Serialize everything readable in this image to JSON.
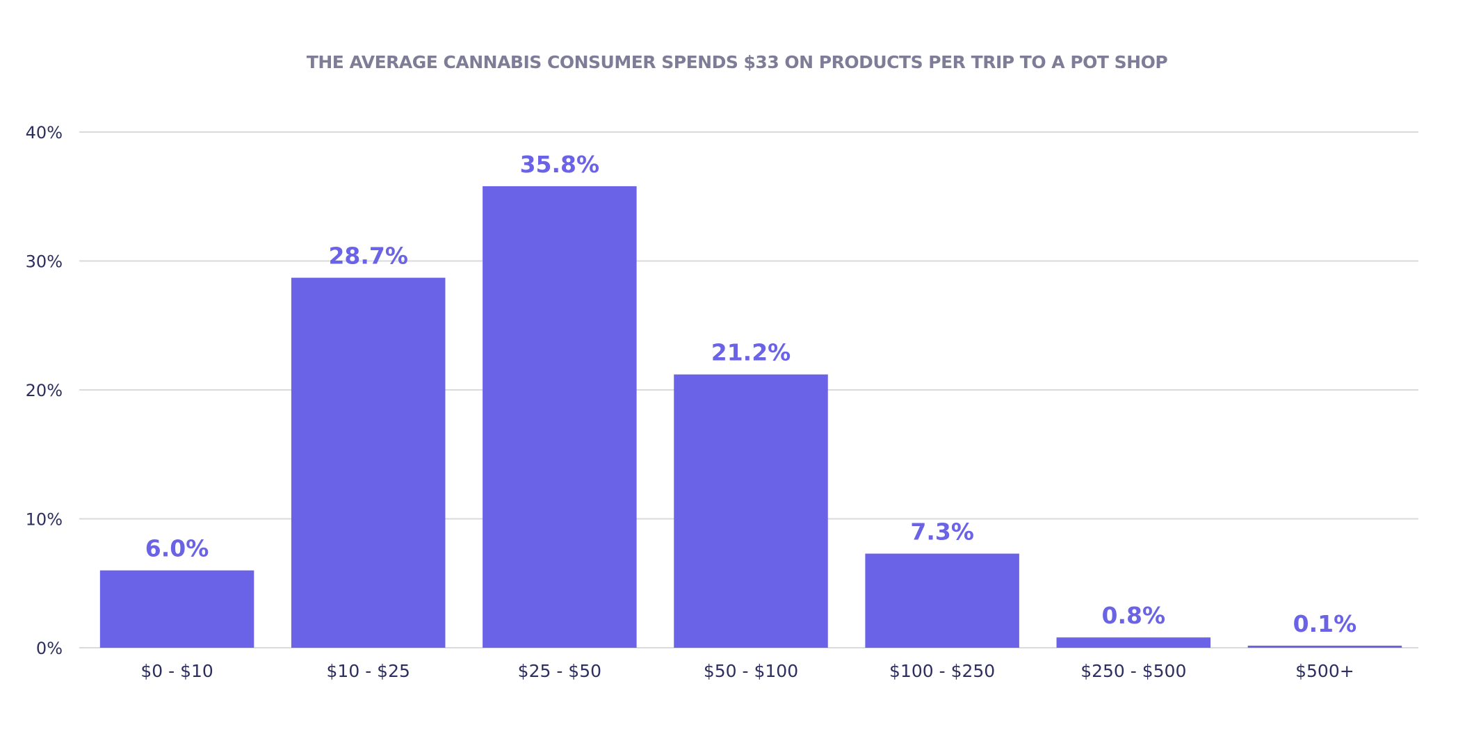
{
  "chart_data": {
    "type": "bar",
    "title": "THE AVERAGE CANNABIS CONSUMER SPENDS $33 ON PRODUCTS PER TRIP TO A POT SHOP",
    "xlabel": "",
    "ylabel": "",
    "categories": [
      "$0 - $10",
      "$10 - $25",
      "$25 - $50",
      "$50 - $100",
      "$100 - $250",
      "$250 - $500",
      "$500+"
    ],
    "values": [
      6.0,
      28.7,
      35.8,
      21.2,
      7.3,
      0.8,
      0.1
    ],
    "data_labels": [
      "6.0%",
      "28.7%",
      "35.8%",
      "21.2%",
      "7.3%",
      "0.8%",
      "0.1%"
    ],
    "ylim": [
      0,
      40
    ],
    "yticks": [
      0,
      10,
      20,
      30,
      40
    ],
    "ytick_labels": [
      "0%",
      "10%",
      "20%",
      "30%",
      "40%"
    ],
    "grid": true,
    "legend": "none",
    "colors": {
      "bar": "#6a63e8",
      "data_label": "#6b63e6",
      "axis_text": "#2c2e5f",
      "title": "#7f7c97",
      "grid": "#dadade"
    }
  }
}
